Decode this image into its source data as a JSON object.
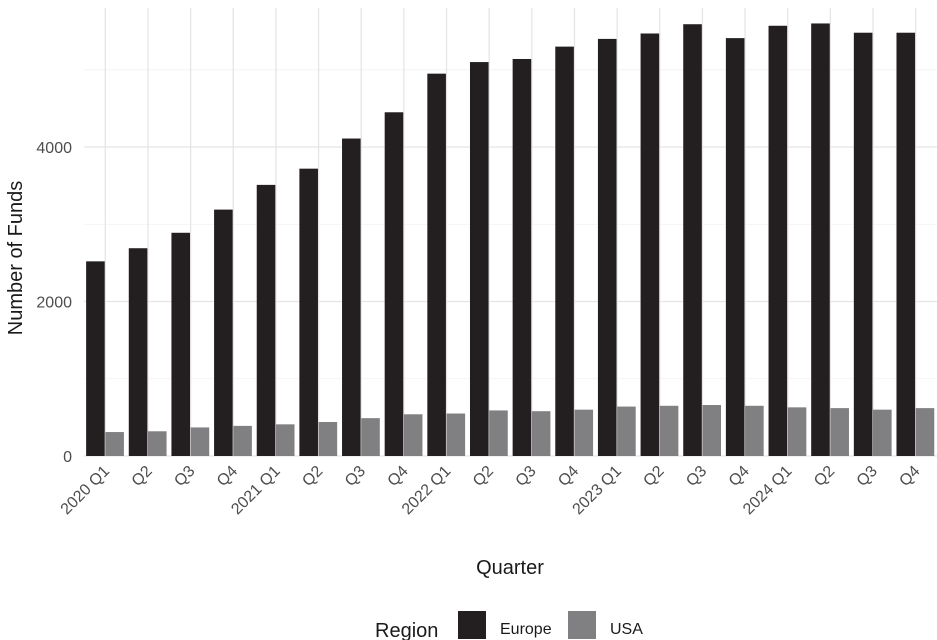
{
  "chart_data": {
    "type": "bar",
    "xlabel": "Quarter",
    "ylabel": "Number of Funds",
    "ylim": [
      0,
      5800
    ],
    "yticks": [
      0,
      2000,
      4000
    ],
    "grid": true,
    "legend_position": "bottom",
    "legend_title": "Region",
    "categories": [
      "2020 Q1",
      "Q2",
      "Q3",
      "Q4",
      "2021 Q1",
      "Q2",
      "Q3",
      "Q4",
      "2022 Q1",
      "Q2",
      "Q3",
      "Q4",
      "2023 Q1",
      "Q2",
      "Q3",
      "Q4",
      "2024 Q1",
      "Q2",
      "Q3",
      "Q4"
    ],
    "series": [
      {
        "name": "Europe",
        "color": "#231f20",
        "values": [
          2520,
          2690,
          2890,
          3190,
          3510,
          3720,
          4110,
          4450,
          4950,
          5100,
          5140,
          5300,
          5400,
          5470,
          5590,
          5410,
          5570,
          5600,
          5480,
          5480
        ]
      },
      {
        "name": "USA",
        "color": "#808083",
        "values": [
          310,
          320,
          370,
          390,
          410,
          440,
          490,
          540,
          550,
          590,
          580,
          600,
          640,
          650,
          660,
          650,
          630,
          620,
          600,
          620
        ]
      }
    ]
  }
}
